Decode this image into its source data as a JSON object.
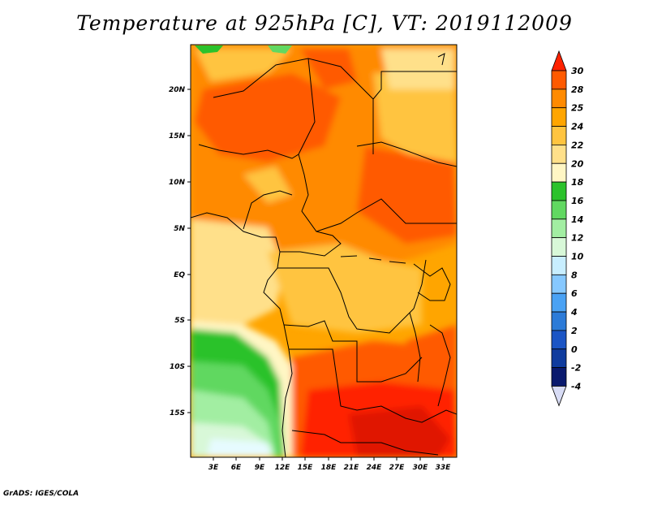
{
  "title": "Temperature at 925hPa [C], VT: 2019112009",
  "credit": "GrADS: IGES/COLA",
  "map": {
    "lon_ticks": [
      "3E",
      "6E",
      "9E",
      "12E",
      "15E",
      "18E",
      "21E",
      "24E",
      "27E",
      "30E",
      "33E"
    ],
    "lat_ticks": [
      "20N",
      "15N",
      "10N",
      "5N",
      "EQ",
      "5S",
      "10S",
      "15S"
    ]
  },
  "colorbar": {
    "labels": [
      "30",
      "28",
      "25",
      "24",
      "22",
      "20",
      "18",
      "16",
      "14",
      "12",
      "10",
      "8",
      "6",
      "4",
      "2",
      "0",
      "-2",
      "-4"
    ],
    "colors": [
      "#ff2200",
      "#ff5a00",
      "#ff8a00",
      "#ffa500",
      "#ffc440",
      "#ffe08a",
      "#fff6c4",
      "#2bc22b",
      "#61d861",
      "#a2eea2",
      "#d8f8d8",
      "#c8eeff",
      "#86c8ff",
      "#4aa2f4",
      "#2c7bd8",
      "#1b55c5",
      "#103c9e",
      "#0a1a6e",
      "#d8dcf5"
    ]
  }
}
